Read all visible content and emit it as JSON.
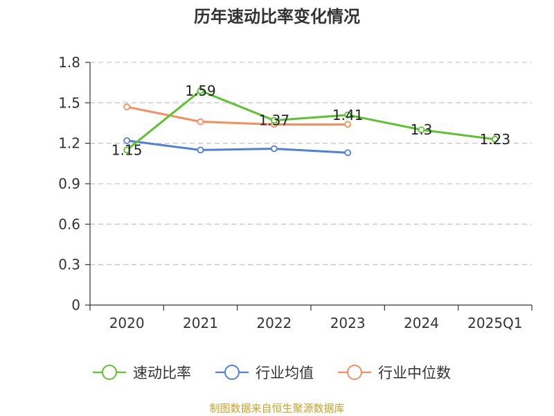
{
  "chart_data": {
    "type": "line",
    "title": "历年速动比率变化情况",
    "categories": [
      "2020",
      "2021",
      "2022",
      "2023",
      "2024",
      "2025Q1"
    ],
    "ylim": [
      0,
      1.8
    ],
    "yticks": [
      "0",
      "0.3",
      "0.6",
      "0.9",
      "1.2",
      "1.5",
      "1.8"
    ],
    "grid": true,
    "legend_position": "bottom",
    "series": [
      {
        "name": "速动比率",
        "color": "#5cc22e",
        "values": [
          1.15,
          1.59,
          1.37,
          1.41,
          1.3,
          1.23
        ],
        "labels": [
          "1.15",
          "1.59",
          "1.37",
          "1.41",
          "1.3",
          "1.23"
        ]
      },
      {
        "name": "行业均值",
        "color": "#4f7fd8",
        "values": [
          1.22,
          1.15,
          1.16,
          1.13,
          null,
          null
        ]
      },
      {
        "name": "行业中位数",
        "color": "#f58e5c",
        "values": [
          1.47,
          1.36,
          1.34,
          1.34,
          null,
          null
        ]
      }
    ]
  },
  "footer": {
    "source": "制图数据来自恒生聚源数据库"
  }
}
